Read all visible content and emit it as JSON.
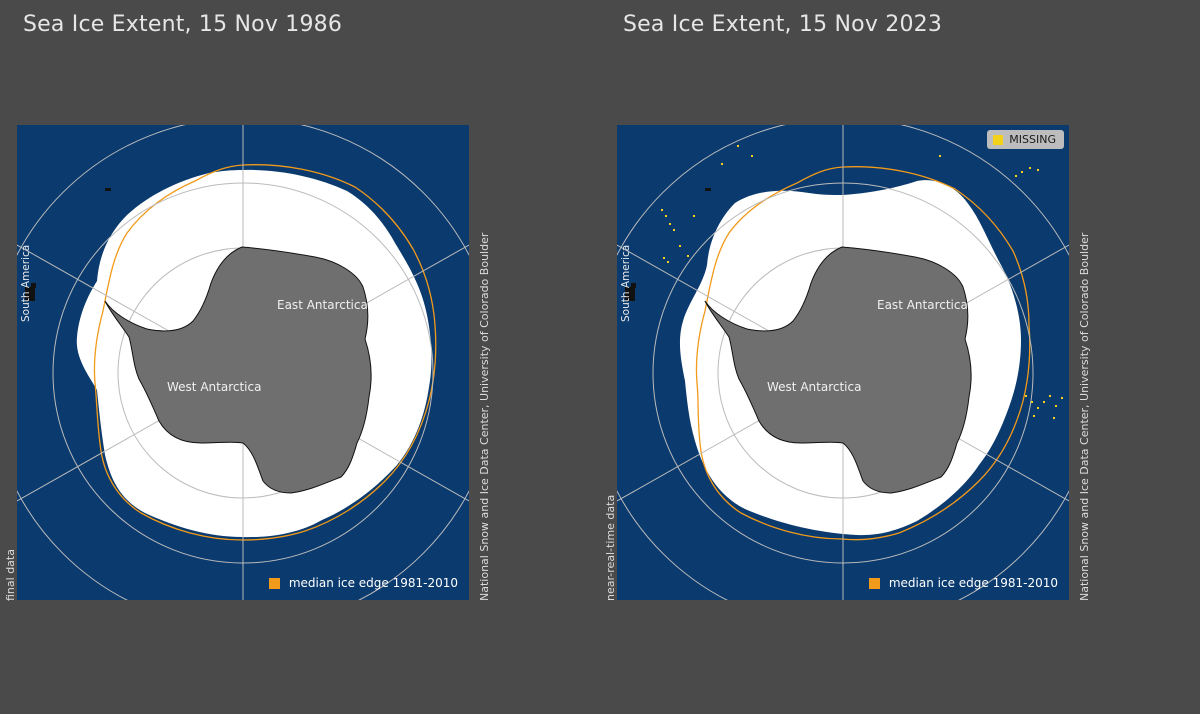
{
  "panels": [
    {
      "title": "Sea Ice Extent, 15 Nov 1986",
      "data_type": "final data",
      "credit": "National Snow and Ice Data Center, University of Colorado Boulder",
      "labels": {
        "south_america": "South America",
        "east_antarctica": "East Antarctica",
        "west_antarctica": "West Antarctica"
      },
      "legend": {
        "label": "median ice edge 1981-2010",
        "color": "#f29a1a"
      },
      "missing": null
    },
    {
      "title": "Sea Ice Extent, 15 Nov 2023",
      "data_type": "near-real-time data",
      "credit": "National Snow and Ice Data Center, University of Colorado Boulder",
      "labels": {
        "south_america": "South America",
        "east_antarctica": "East Antarctica",
        "west_antarctica": "West Antarctica"
      },
      "legend": {
        "label": "median ice edge 1981-2010",
        "color": "#f29a1a"
      },
      "missing": {
        "label": "MISSING",
        "color": "#f2d21a"
      }
    }
  ],
  "colors": {
    "ocean": "#0a3a6e",
    "ice": "#ffffff",
    "land": "#6f6f6f",
    "gridline": "#bbbbbb",
    "median_edge": "#f29a1a",
    "background": "#4a4a4a"
  }
}
